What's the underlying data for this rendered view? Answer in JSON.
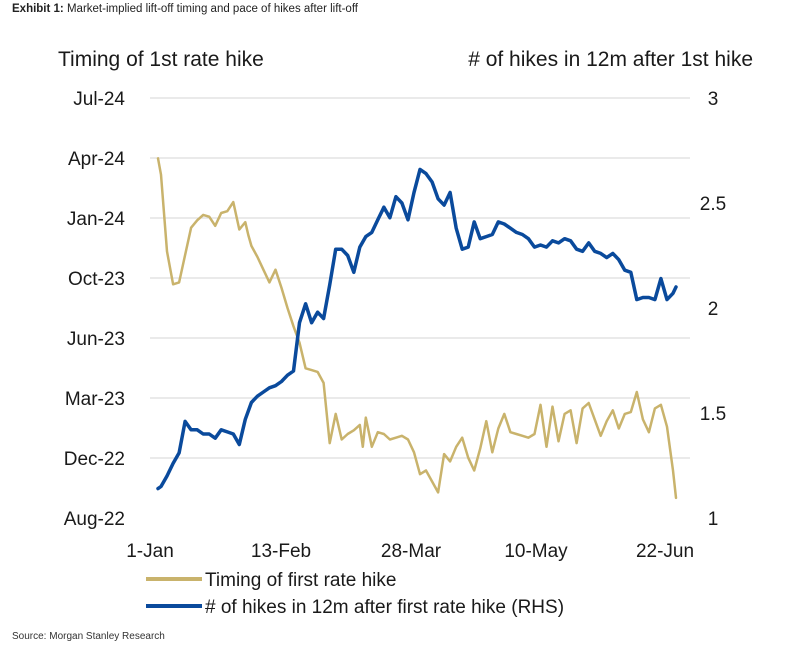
{
  "header": {
    "exhibit_label": "Exhibit 1:",
    "exhibit_title": "Market-implied lift-off timing and pace of hikes after lift-off"
  },
  "source": "Source: Morgan Stanley Research",
  "colors": {
    "timing": "#c9b36c",
    "hikes": "#0a4a9c",
    "grid": "#d4d4d4"
  },
  "chart_data": {
    "type": "line",
    "left_axis_title": "Timing of 1st rate hike",
    "right_axis_title": "# of hikes in 12m after 1st hike",
    "left_ticks": [
      "Jul-24",
      "Apr-24",
      "Jan-24",
      "Oct-23",
      "Jun-23",
      "Mar-23",
      "Dec-22",
      "Aug-22"
    ],
    "right_ticks": [
      "3",
      "2.5",
      "2",
      "1.5",
      "1"
    ],
    "right_ylim": [
      1,
      3
    ],
    "x_ticks": [
      "1-Jan",
      "13-Feb",
      "28-Mar",
      "10-May",
      "22-Jun"
    ],
    "x_day_range": [
      0,
      172
    ],
    "left_axis_note": "left series values expressed in months after Aug-22 (0 = Aug-22, 23 = Jul-24)",
    "left_ylim": [
      0,
      23
    ],
    "series": [
      {
        "name": "Timing of first rate hike",
        "axis": "left",
        "x": [
          0,
          1,
          3,
          5,
          7,
          9,
          11,
          13,
          15,
          17,
          19,
          21,
          23,
          25,
          27,
          29,
          30,
          31,
          33,
          35,
          37,
          39,
          41,
          43,
          45,
          47,
          49,
          51,
          53,
          55,
          57,
          59,
          61,
          63,
          65,
          67,
          68,
          69,
          71,
          73,
          75,
          77,
          79,
          81,
          83,
          85,
          87,
          89,
          91,
          93,
          95,
          97,
          99,
          101,
          103,
          105,
          107,
          109,
          111,
          113,
          115,
          117,
          119,
          121,
          123,
          125,
          127,
          129,
          131,
          133,
          135,
          137,
          139,
          141,
          143,
          145,
          147,
          149,
          151,
          153,
          155,
          157,
          159,
          161,
          163,
          165,
          167,
          169,
          171,
          172
        ],
        "y": [
          19.7,
          18.8,
          14.6,
          12.8,
          12.9,
          14.4,
          15.9,
          16.3,
          16.6,
          16.5,
          16.0,
          16.7,
          16.8,
          17.3,
          15.8,
          16.2,
          15.5,
          14.9,
          14.3,
          13.6,
          12.9,
          13.6,
          12.6,
          11.5,
          10.5,
          9.6,
          8.2,
          8.1,
          8.0,
          7.4,
          4.1,
          5.7,
          4.3,
          4.6,
          4.8,
          5.1,
          3.9,
          5.5,
          3.9,
          4.7,
          4.6,
          4.3,
          4.4,
          4.5,
          4.3,
          3.6,
          2.4,
          2.6,
          2.0,
          1.4,
          3.5,
          3.1,
          3.9,
          4.4,
          3.3,
          2.6,
          3.8,
          5.3,
          3.6,
          4.9,
          5.7,
          4.7,
          4.6,
          4.5,
          4.4,
          4.6,
          6.2,
          3.9,
          6.1,
          4.2,
          5.7,
          5.9,
          4.1,
          6.0,
          6.3,
          5.4,
          4.5,
          5.3,
          5.9,
          4.9,
          5.7,
          5.8,
          6.9,
          5.4,
          4.7,
          6.0,
          6.2,
          5.0,
          2.6,
          1.1
        ]
      },
      {
        "name": "# of hikes in 12m after first rate hike (RHS)",
        "axis": "right",
        "x": [
          0,
          1,
          3,
          5,
          7,
          9,
          11,
          13,
          15,
          17,
          19,
          21,
          23,
          25,
          27,
          29,
          31,
          33,
          35,
          37,
          39,
          41,
          43,
          45,
          47,
          49,
          51,
          53,
          55,
          57,
          59,
          61,
          63,
          65,
          67,
          69,
          71,
          73,
          75,
          77,
          79,
          81,
          83,
          85,
          87,
          89,
          91,
          93,
          95,
          97,
          99,
          101,
          103,
          105,
          107,
          109,
          111,
          113,
          115,
          117,
          119,
          121,
          123,
          125,
          127,
          129,
          131,
          133,
          135,
          137,
          139,
          141,
          143,
          145,
          147,
          149,
          151,
          153,
          155,
          157,
          159,
          161,
          163,
          165,
          167,
          169,
          171,
          172
        ],
        "y": [
          1.14,
          1.15,
          1.2,
          1.26,
          1.31,
          1.46,
          1.42,
          1.42,
          1.4,
          1.4,
          1.38,
          1.42,
          1.41,
          1.4,
          1.35,
          1.47,
          1.55,
          1.58,
          1.6,
          1.62,
          1.63,
          1.65,
          1.68,
          1.7,
          1.93,
          2.02,
          1.93,
          1.98,
          1.95,
          2.11,
          2.28,
          2.28,
          2.25,
          2.17,
          2.29,
          2.34,
          2.36,
          2.42,
          2.48,
          2.43,
          2.53,
          2.5,
          2.42,
          2.55,
          2.66,
          2.64,
          2.6,
          2.52,
          2.49,
          2.55,
          2.38,
          2.28,
          2.29,
          2.41,
          2.33,
          2.34,
          2.35,
          2.41,
          2.4,
          2.38,
          2.36,
          2.35,
          2.33,
          2.29,
          2.3,
          2.29,
          2.32,
          2.31,
          2.33,
          2.32,
          2.28,
          2.27,
          2.31,
          2.27,
          2.26,
          2.24,
          2.26,
          2.23,
          2.18,
          2.17,
          2.04,
          2.05,
          2.05,
          2.04,
          2.14,
          2.04,
          2.07,
          2.1
        ]
      }
    ]
  }
}
